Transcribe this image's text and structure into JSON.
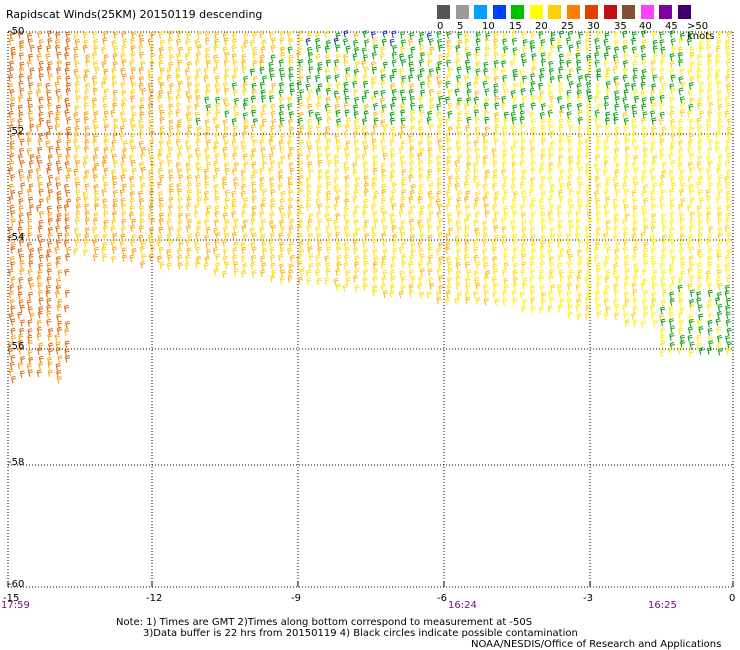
{
  "title": "Rapidscat Winds(25KM) 20150119 descending",
  "legend": {
    "swatches": [
      "#555555",
      "#9a9a9a",
      "#00a0ff",
      "#0040ff",
      "#00c000",
      "#ffff00",
      "#ffd000",
      "#ff8000",
      "#e04000",
      "#c01010",
      "#805030",
      "#ff40ff",
      "#8000a0",
      "#400070"
    ],
    "labels": [
      "0",
      "5",
      "10",
      "15",
      "20",
      "25",
      "30",
      "35",
      "40",
      "45",
      ">50 knots"
    ]
  },
  "axes": {
    "lat_labels": [
      "-50",
      "-52",
      "-54",
      "-56",
      "-58",
      "-60"
    ],
    "lon_labels": [
      "-15",
      "-12",
      "-9",
      "-6",
      "-3",
      "0"
    ],
    "time_labels": [
      "17:59",
      "16:24",
      "16:25"
    ]
  },
  "notes": {
    "line1": "Note: 1) Times are GMT 2)Times along bottom correspond to measurement at -50S",
    "line2": "3)Data buffer is 22 hrs from 20150119 4) Black circles indicate possible contamination",
    "credit": "NOAA/NESDIS/Office of Research and Applications"
  }
}
